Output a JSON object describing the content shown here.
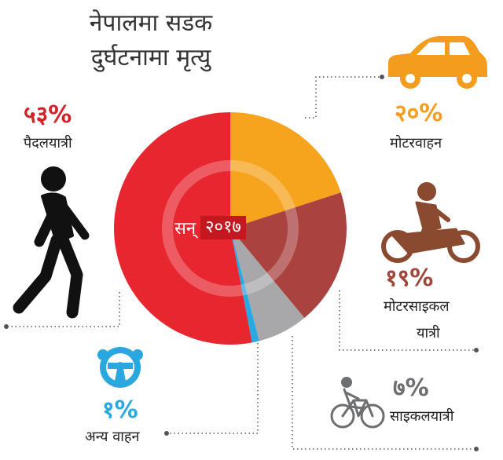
{
  "title": {
    "line1": "नेपालमा सडक",
    "line2": "दुर्घटनामा मृत्यु"
  },
  "center": {
    "prefix": "सन्",
    "year": "२०१७"
  },
  "colors": {
    "pedestrian": "#e8262f",
    "motor_vehicle": "#f6a31e",
    "motorcycle": "#aa4240",
    "bicycle": "#a8a8ab",
    "other_vehicle": "#28a9e1",
    "pedestrian_text": "#d62128",
    "motor_vehicle_text": "#f39c1d",
    "motorcycle_text": "#a0463a",
    "bicycle_text": "#6d6e71",
    "other_vehicle_text": "#29a9e1"
  },
  "icons": {
    "pedestrian": "walking-person-icon",
    "motor_vehicle": "car-icon",
    "motorcycle": "motorcycle-rider-icon",
    "bicycle": "bicycle-rider-icon",
    "other_vehicle": "steering-wheel-icon"
  },
  "labels": {
    "pedestrian": {
      "pct": "५३%",
      "name": "पैदलयात्री"
    },
    "motor_vehicle": {
      "pct": "२०%",
      "name": "मोटरवाहन"
    },
    "motorcycle": {
      "pct": "१९%",
      "name1": "मोटरसाइकल",
      "name2": "यात्री"
    },
    "bicycle": {
      "pct": "७%",
      "name": "साइकलयात्री"
    },
    "other_vehicle": {
      "pct": "१%",
      "name": "अन्य वाहन"
    }
  },
  "chart_data": {
    "type": "pie",
    "title": "नेपालमा सडक दुर्घटनामा मृत्यु",
    "subtitle": "सन् २०१७",
    "categories": [
      "मोटरवाहन",
      "मोटरसाइकल यात्री",
      "साइकलयात्री",
      "अन्य वाहन",
      "पैदलयात्री"
    ],
    "values": [
      20,
      19,
      7,
      1,
      53
    ],
    "unit": "%"
  }
}
